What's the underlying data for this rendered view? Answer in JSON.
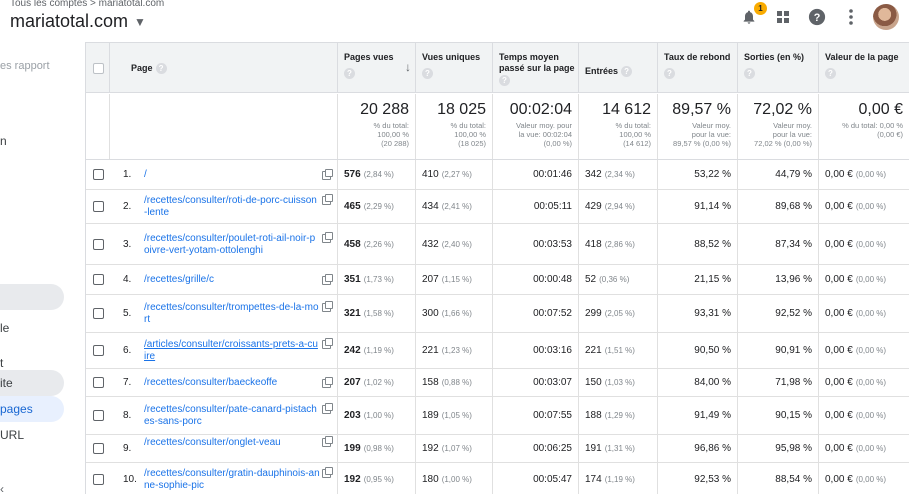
{
  "header": {
    "breadcrumb": "Tous les comptes > mariatotal.com",
    "property": "mariatotal.com",
    "notification_count": "1",
    "icons": [
      "notifications-icon",
      "apps-grid-icon",
      "help-icon",
      "more-vert-icon",
      "avatar"
    ]
  },
  "sidebar": {
    "items": [
      {
        "label": "es rapport",
        "style": "gray"
      },
      {
        "label": "n",
        "style": "plain"
      },
      {
        "label": "",
        "style": "hover"
      },
      {
        "label": "le",
        "style": "plain"
      },
      {
        "label": "t",
        "style": "plain"
      },
      {
        "label": "ite",
        "style": "hover"
      },
      {
        "label": "pages",
        "style": "active"
      },
      {
        "label": "URL",
        "style": "plain"
      }
    ]
  },
  "table": {
    "columns": [
      {
        "label": "Page"
      },
      {
        "label": "Pages vues",
        "sorted": true
      },
      {
        "label": "Vues uniques"
      },
      {
        "label": "Temps moyen passé sur la page"
      },
      {
        "label": "Entrées"
      },
      {
        "label": "Taux de rebond"
      },
      {
        "label": "Sorties (en %)"
      },
      {
        "label": "Valeur de la page"
      }
    ],
    "totals": [
      {
        "main": "20 288",
        "sub": [
          "% du total:",
          "100,00 %",
          "(20 288)"
        ]
      },
      {
        "main": "18 025",
        "sub": [
          "% du total:",
          "100,00 %",
          "(18 025)"
        ]
      },
      {
        "main": "00:02:04",
        "sub": [
          "Valeur moy. pour",
          "la vue: 00:02:04",
          "(0,00 %)"
        ]
      },
      {
        "main": "14 612",
        "sub": [
          "% du total:",
          "100,00 %",
          "(14 612)"
        ]
      },
      {
        "main": "89,57 %",
        "sub": [
          "Valeur moy.",
          "pour la vue:",
          "89,57 % (0,00 %)"
        ]
      },
      {
        "main": "72,02 %",
        "sub": [
          "Valeur moy.",
          "pour la vue:",
          "72,02 % (0,00 %)"
        ]
      },
      {
        "main": "0,00 €",
        "sub": [
          "% du total: 0,00 %",
          "(0,00 €)"
        ]
      }
    ],
    "rows": [
      {
        "idx": "1.",
        "page": "/",
        "views": "576",
        "views_pct": "(2,84 %)",
        "unique": "410",
        "unique_pct": "(2,27 %)",
        "time": "00:01:46",
        "entries": "342",
        "entries_pct": "(2,34 %)",
        "bounce": "53,22 %",
        "exits": "44,79 %",
        "value": "0,00 €",
        "value_pct": "(0,00 %)"
      },
      {
        "idx": "2.",
        "page": "/recettes/consulter/roti-de-porc-cuisson-lente",
        "views": "465",
        "views_pct": "(2,29 %)",
        "unique": "434",
        "unique_pct": "(2,41 %)",
        "time": "00:05:11",
        "entries": "429",
        "entries_pct": "(2,94 %)",
        "bounce": "91,14 %",
        "exits": "89,68 %",
        "value": "0,00 €",
        "value_pct": "(0,00 %)"
      },
      {
        "idx": "3.",
        "page": "/recettes/consulter/poulet-roti-ail-noir-poivre-vert-yotam-ottolenghi",
        "views": "458",
        "views_pct": "(2,26 %)",
        "unique": "432",
        "unique_pct": "(2,40 %)",
        "time": "00:03:53",
        "entries": "418",
        "entries_pct": "(2,86 %)",
        "bounce": "88,52 %",
        "exits": "87,34 %",
        "value": "0,00 €",
        "value_pct": "(0,00 %)"
      },
      {
        "idx": "4.",
        "page": "/recettes/grille/c",
        "views": "351",
        "views_pct": "(1,73 %)",
        "unique": "207",
        "unique_pct": "(1,15 %)",
        "time": "00:00:48",
        "entries": "52",
        "entries_pct": "(0,36 %)",
        "bounce": "21,15 %",
        "exits": "13,96 %",
        "value": "0,00 €",
        "value_pct": "(0,00 %)"
      },
      {
        "idx": "5.",
        "page": "/recettes/consulter/trompettes-de-la-mort",
        "views": "321",
        "views_pct": "(1,58 %)",
        "unique": "300",
        "unique_pct": "(1,66 %)",
        "time": "00:07:52",
        "entries": "299",
        "entries_pct": "(2,05 %)",
        "bounce": "93,31 %",
        "exits": "92,52 %",
        "value": "0,00 €",
        "value_pct": "(0,00 %)"
      },
      {
        "idx": "6.",
        "page": "/articles/consulter/croissants-prets-a-cuire",
        "views": "242",
        "views_pct": "(1,19 %)",
        "unique": "221",
        "unique_pct": "(1,23 %)",
        "time": "00:03:16",
        "entries": "221",
        "entries_pct": "(1,51 %)",
        "bounce": "90,50 %",
        "exits": "90,91 %",
        "value": "0,00 €",
        "value_pct": "(0,00 %)"
      },
      {
        "idx": "7.",
        "page": "/recettes/consulter/baeckeoffe",
        "views": "207",
        "views_pct": "(1,02 %)",
        "unique": "158",
        "unique_pct": "(0,88 %)",
        "time": "00:03:07",
        "entries": "150",
        "entries_pct": "(1,03 %)",
        "bounce": "84,00 %",
        "exits": "71,98 %",
        "value": "0,00 €",
        "value_pct": "(0,00 %)"
      },
      {
        "idx": "8.",
        "page": "/recettes/consulter/pate-canard-pistaches-sans-porc",
        "views": "203",
        "views_pct": "(1,00 %)",
        "unique": "189",
        "unique_pct": "(1,05 %)",
        "time": "00:07:55",
        "entries": "188",
        "entries_pct": "(1,29 %)",
        "bounce": "91,49 %",
        "exits": "90,15 %",
        "value": "0,00 €",
        "value_pct": "(0,00 %)"
      },
      {
        "idx": "9.",
        "page": "/recettes/consulter/onglet-veau",
        "views": "199",
        "views_pct": "(0,98 %)",
        "unique": "192",
        "unique_pct": "(1,07 %)",
        "time": "00:06:25",
        "entries": "191",
        "entries_pct": "(1,31 %)",
        "bounce": "96,86 %",
        "exits": "95,98 %",
        "value": "0,00 €",
        "value_pct": "(0,00 %)"
      },
      {
        "idx": "10.",
        "page": "/recettes/consulter/gratin-dauphinois-anne-sophie-pic",
        "views": "192",
        "views_pct": "(0,95 %)",
        "unique": "180",
        "unique_pct": "(1,00 %)",
        "time": "00:05:47",
        "entries": "174",
        "entries_pct": "(1,19 %)",
        "bounce": "92,53 %",
        "exits": "88,54 %",
        "value": "0,00 €",
        "value_pct": "(0,00 %)"
      }
    ]
  }
}
